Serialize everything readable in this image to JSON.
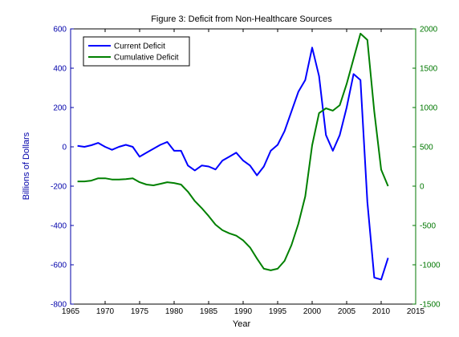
{
  "chart_data": {
    "type": "line",
    "title": "Figure 3: Deficit from Non-Healthcare Sources",
    "xlabel": "Year",
    "ylabel_left": "Billions of Dollars",
    "ylabel_right": "",
    "xlim": [
      1965,
      2015
    ],
    "ylim_left": [
      -800,
      600
    ],
    "ylim_right": [
      -1500,
      2000
    ],
    "x_ticks": [
      1965,
      1970,
      1975,
      1980,
      1985,
      1990,
      1995,
      2000,
      2005,
      2010,
      2015
    ],
    "y_left_ticks": [
      -800,
      -600,
      -400,
      -200,
      0,
      200,
      400,
      600
    ],
    "y_right_ticks": [
      -1500,
      -1000,
      -500,
      0,
      500,
      1000,
      1500,
      2000
    ],
    "grid": false,
    "legend_position": "top-left",
    "colors": {
      "left_axis": "#0000aa",
      "right_axis": "#007700",
      "series_current": "#0000ff",
      "series_cumulative": "#008000"
    },
    "series": [
      {
        "name": "Current Deficit",
        "axis": "left",
        "x": [
          1966,
          1967,
          1968,
          1969,
          1970,
          1971,
          1972,
          1973,
          1974,
          1975,
          1976,
          1977,
          1978,
          1979,
          1980,
          1981,
          1982,
          1983,
          1984,
          1985,
          1986,
          1987,
          1988,
          1989,
          1990,
          1991,
          1992,
          1993,
          1994,
          1995,
          1996,
          1997,
          1998,
          1999,
          2000,
          2001,
          2002,
          2003,
          2004,
          2005,
          2006,
          2007,
          2008,
          2009,
          2010,
          2011
        ],
        "values": [
          5,
          0,
          8,
          20,
          0,
          -15,
          0,
          10,
          0,
          -50,
          -30,
          -10,
          10,
          25,
          -20,
          -20,
          -95,
          -120,
          -95,
          -100,
          -115,
          -70,
          -50,
          -30,
          -70,
          -95,
          -145,
          -100,
          -20,
          10,
          80,
          180,
          280,
          340,
          505,
          360,
          60,
          -20,
          60,
          200,
          370,
          340,
          -280,
          -665,
          -675,
          -565
        ]
      },
      {
        "name": "Cumulative Deficit",
        "axis": "right",
        "x": [
          1966,
          1967,
          1968,
          1969,
          1970,
          1971,
          1972,
          1973,
          1974,
          1975,
          1976,
          1977,
          1978,
          1979,
          1980,
          1981,
          1982,
          1983,
          1984,
          1985,
          1986,
          1987,
          1988,
          1989,
          1990,
          1991,
          1992,
          1993,
          1994,
          1995,
          1996,
          1997,
          1998,
          1999,
          2000,
          2001,
          2002,
          2003,
          2004,
          2005,
          2006,
          2007,
          2008,
          2009,
          2010,
          2011
        ],
        "values": [
          60,
          60,
          70,
          100,
          100,
          85,
          85,
          90,
          100,
          50,
          20,
          10,
          30,
          50,
          40,
          20,
          -70,
          -190,
          -280,
          -380,
          -490,
          -560,
          -600,
          -630,
          -690,
          -780,
          -920,
          -1050,
          -1070,
          -1050,
          -950,
          -750,
          -480,
          -130,
          520,
          930,
          990,
          960,
          1030,
          1300,
          1620,
          1940,
          1860,
          950,
          210,
          0
        ]
      }
    ]
  }
}
